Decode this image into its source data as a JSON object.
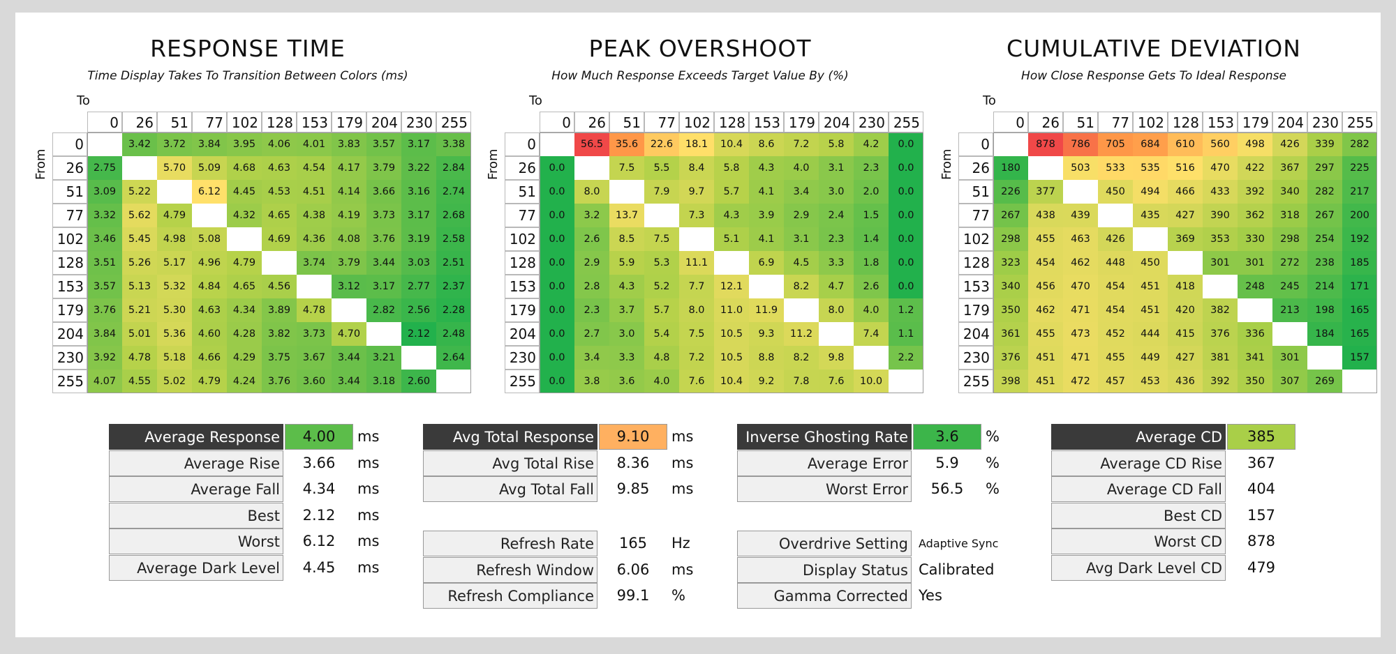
{
  "chart_data": [
    {
      "type": "heatmap",
      "title": "RESPONSE TIME",
      "subtitle": "Time Display Takes To Transition Between Colors (ms)",
      "xlabel": "To",
      "ylabel": "From",
      "x": [
        "0",
        "26",
        "51",
        "77",
        "102",
        "128",
        "153",
        "179",
        "204",
        "230",
        "255"
      ],
      "y": [
        "0",
        "26",
        "51",
        "77",
        "102",
        "128",
        "153",
        "179",
        "204",
        "230",
        "255"
      ],
      "values": [
        [
          null,
          "3.42",
          "3.72",
          "3.84",
          "3.95",
          "4.06",
          "4.01",
          "3.83",
          "3.57",
          "3.17",
          "3.38"
        ],
        [
          "2.75",
          null,
          "5.70",
          "5.09",
          "4.68",
          "4.63",
          "4.54",
          "4.17",
          "3.79",
          "3.22",
          "2.84"
        ],
        [
          "3.09",
          "5.22",
          null,
          "6.12",
          "4.45",
          "4.53",
          "4.51",
          "4.14",
          "3.66",
          "3.16",
          "2.74"
        ],
        [
          "3.32",
          "5.62",
          "4.79",
          null,
          "4.32",
          "4.65",
          "4.38",
          "4.19",
          "3.73",
          "3.17",
          "2.68"
        ],
        [
          "3.46",
          "5.45",
          "4.98",
          "5.08",
          null,
          "4.69",
          "4.36",
          "4.08",
          "3.76",
          "3.19",
          "2.58"
        ],
        [
          "3.51",
          "5.26",
          "5.17",
          "4.96",
          "4.79",
          null,
          "3.74",
          "3.79",
          "3.44",
          "3.03",
          "2.51"
        ],
        [
          "3.57",
          "5.13",
          "5.32",
          "4.84",
          "4.65",
          "4.56",
          null,
          "3.12",
          "3.17",
          "2.77",
          "2.37"
        ],
        [
          "3.76",
          "5.21",
          "5.30",
          "4.63",
          "4.34",
          "3.89",
          "4.78",
          null,
          "2.82",
          "2.56",
          "2.28"
        ],
        [
          "3.84",
          "5.01",
          "5.36",
          "4.60",
          "4.28",
          "3.82",
          "3.73",
          "4.70",
          null,
          "2.12",
          "2.48"
        ],
        [
          "3.92",
          "4.78",
          "5.18",
          "4.66",
          "4.29",
          "3.75",
          "3.67",
          "3.44",
          "3.21",
          null,
          "2.64"
        ],
        [
          "4.07",
          "4.55",
          "5.02",
          "4.79",
          "4.24",
          "3.76",
          "3.60",
          "3.44",
          "3.18",
          "2.60",
          null
        ]
      ],
      "color_scale": [
        "#22b14c",
        "#6cc04a",
        "#b6d24a",
        "#ffe06a"
      ]
    },
    {
      "type": "heatmap",
      "title": "PEAK OVERSHOOT",
      "subtitle": "How Much Response Exceeds Target Value By (%)",
      "xlabel": "To",
      "ylabel": "From",
      "x": [
        "0",
        "26",
        "51",
        "77",
        "102",
        "128",
        "153",
        "179",
        "204",
        "230",
        "255"
      ],
      "y": [
        "0",
        "26",
        "51",
        "77",
        "102",
        "128",
        "153",
        "179",
        "204",
        "230",
        "255"
      ],
      "values": [
        [
          null,
          "56.5",
          "35.6",
          "22.6",
          "18.1",
          "10.4",
          "8.6",
          "7.2",
          "5.8",
          "4.2",
          "0.0"
        ],
        [
          "0.0",
          null,
          "7.5",
          "5.5",
          "8.4",
          "5.8",
          "4.3",
          "4.0",
          "3.1",
          "2.3",
          "0.0"
        ],
        [
          "0.0",
          "8.0",
          null,
          "7.9",
          "9.7",
          "5.7",
          "4.1",
          "3.4",
          "3.0",
          "2.0",
          "0.0"
        ],
        [
          "0.0",
          "3.2",
          "13.7",
          null,
          "7.3",
          "4.3",
          "3.9",
          "2.9",
          "2.4",
          "1.5",
          "0.0"
        ],
        [
          "0.0",
          "2.6",
          "8.5",
          "7.5",
          null,
          "5.1",
          "4.1",
          "3.1",
          "2.3",
          "1.4",
          "0.0"
        ],
        [
          "0.0",
          "2.9",
          "5.9",
          "5.3",
          "11.1",
          null,
          "6.9",
          "4.5",
          "3.3",
          "1.8",
          "0.0"
        ],
        [
          "0.0",
          "2.8",
          "4.3",
          "5.2",
          "7.7",
          "12.1",
          null,
          "8.2",
          "4.7",
          "2.6",
          "0.0"
        ],
        [
          "0.0",
          "2.3",
          "3.7",
          "5.7",
          "8.0",
          "11.0",
          "11.9",
          null,
          "8.0",
          "4.0",
          "1.2"
        ],
        [
          "0.0",
          "2.7",
          "3.0",
          "5.4",
          "7.5",
          "10.5",
          "9.3",
          "11.2",
          null,
          "7.4",
          "1.1"
        ],
        [
          "0.0",
          "3.4",
          "3.3",
          "4.8",
          "7.2",
          "10.5",
          "8.8",
          "8.2",
          "9.8",
          null,
          "2.2"
        ],
        [
          "0.0",
          "3.8",
          "3.6",
          "4.0",
          "7.6",
          "10.4",
          "9.2",
          "7.8",
          "7.6",
          "10.0",
          null
        ]
      ],
      "color_scale": [
        "#22b14c",
        "#b6d24a",
        "#ffe06a",
        "#ff9a48",
        "#f04848"
      ]
    },
    {
      "type": "heatmap",
      "title": "CUMULATIVE DEVIATION",
      "subtitle": "How Close Response Gets To Ideal Response",
      "xlabel": "To",
      "ylabel": "From",
      "x": [
        "0",
        "26",
        "51",
        "77",
        "102",
        "128",
        "153",
        "179",
        "204",
        "230",
        "255"
      ],
      "y": [
        "0",
        "26",
        "51",
        "77",
        "102",
        "128",
        "153",
        "179",
        "204",
        "230",
        "255"
      ],
      "values": [
        [
          null,
          "878",
          "786",
          "705",
          "684",
          "610",
          "560",
          "498",
          "426",
          "339",
          "282"
        ],
        [
          "180",
          null,
          "503",
          "533",
          "535",
          "516",
          "470",
          "422",
          "367",
          "297",
          "225"
        ],
        [
          "226",
          "377",
          null,
          "450",
          "494",
          "466",
          "433",
          "392",
          "340",
          "282",
          "217"
        ],
        [
          "267",
          "438",
          "439",
          null,
          "435",
          "427",
          "390",
          "362",
          "318",
          "267",
          "200"
        ],
        [
          "298",
          "455",
          "463",
          "426",
          null,
          "369",
          "353",
          "330",
          "298",
          "254",
          "192"
        ],
        [
          "323",
          "454",
          "462",
          "448",
          "450",
          null,
          "301",
          "301",
          "272",
          "238",
          "185"
        ],
        [
          "340",
          "456",
          "470",
          "454",
          "451",
          "418",
          null,
          "248",
          "245",
          "214",
          "171"
        ],
        [
          "350",
          "462",
          "471",
          "454",
          "451",
          "420",
          "382",
          null,
          "213",
          "198",
          "165"
        ],
        [
          "361",
          "455",
          "473",
          "452",
          "444",
          "415",
          "376",
          "336",
          null,
          "184",
          "165"
        ],
        [
          "376",
          "451",
          "471",
          "455",
          "449",
          "427",
          "381",
          "341",
          "301",
          null,
          "157"
        ],
        [
          "398",
          "451",
          "472",
          "457",
          "453",
          "436",
          "392",
          "350",
          "307",
          "269",
          null
        ]
      ],
      "color_scale": [
        "#22b14c",
        "#a9cf48",
        "#ffe06a",
        "#ff9a48",
        "#f04848"
      ]
    }
  ],
  "stats": {
    "response": [
      {
        "label": "Average Response",
        "value": "4.00",
        "unit": "ms",
        "dark": true,
        "color": "#5cbd4a"
      },
      {
        "label": "Average Rise",
        "value": "3.66",
        "unit": "ms"
      },
      {
        "label": "Average Fall",
        "value": "4.34",
        "unit": "ms"
      },
      {
        "label": "Best",
        "value": "2.12",
        "unit": "ms"
      },
      {
        "label": "Worst",
        "value": "6.12",
        "unit": "ms"
      },
      {
        "label": "Average Dark Level",
        "value": "4.45",
        "unit": "ms"
      }
    ],
    "total_response": [
      {
        "label": "Avg Total Response",
        "value": "9.10",
        "unit": "ms",
        "dark": true,
        "color": "#ffb060"
      },
      {
        "label": "Avg Total Rise",
        "value": "8.36",
        "unit": "ms"
      },
      {
        "label": "Avg Total Fall",
        "value": "9.85",
        "unit": "ms"
      }
    ],
    "refresh": [
      {
        "label": "Refresh Rate",
        "value": "165",
        "unit": "Hz"
      },
      {
        "label": "Refresh Window",
        "value": "6.06",
        "unit": "ms"
      },
      {
        "label": "Refresh Compliance",
        "value": "99.1",
        "unit": "%"
      }
    ],
    "overshoot": [
      {
        "label": "Inverse Ghosting Rate",
        "value": "3.6",
        "unit": "%",
        "dark": true,
        "color": "#3cb54a"
      },
      {
        "label": "Average Error",
        "value": "5.9",
        "unit": "%"
      },
      {
        "label": "Worst Error",
        "value": "56.5",
        "unit": "%"
      }
    ],
    "settings": [
      {
        "label": "Overdrive Setting",
        "value": "Adaptive Sync",
        "small": true
      },
      {
        "label": "Display Status",
        "value": "Calibrated"
      },
      {
        "label": "Gamma Corrected",
        "value": "Yes"
      }
    ],
    "cd": [
      {
        "label": "Average CD",
        "value": "385",
        "dark": true,
        "color": "#a9cf48"
      },
      {
        "label": "Average CD Rise",
        "value": "367"
      },
      {
        "label": "Average CD Fall",
        "value": "404"
      },
      {
        "label": "Best CD",
        "value": "157"
      },
      {
        "label": "Worst CD",
        "value": "878"
      },
      {
        "label": "Avg Dark Level CD",
        "value": "479"
      }
    ]
  }
}
